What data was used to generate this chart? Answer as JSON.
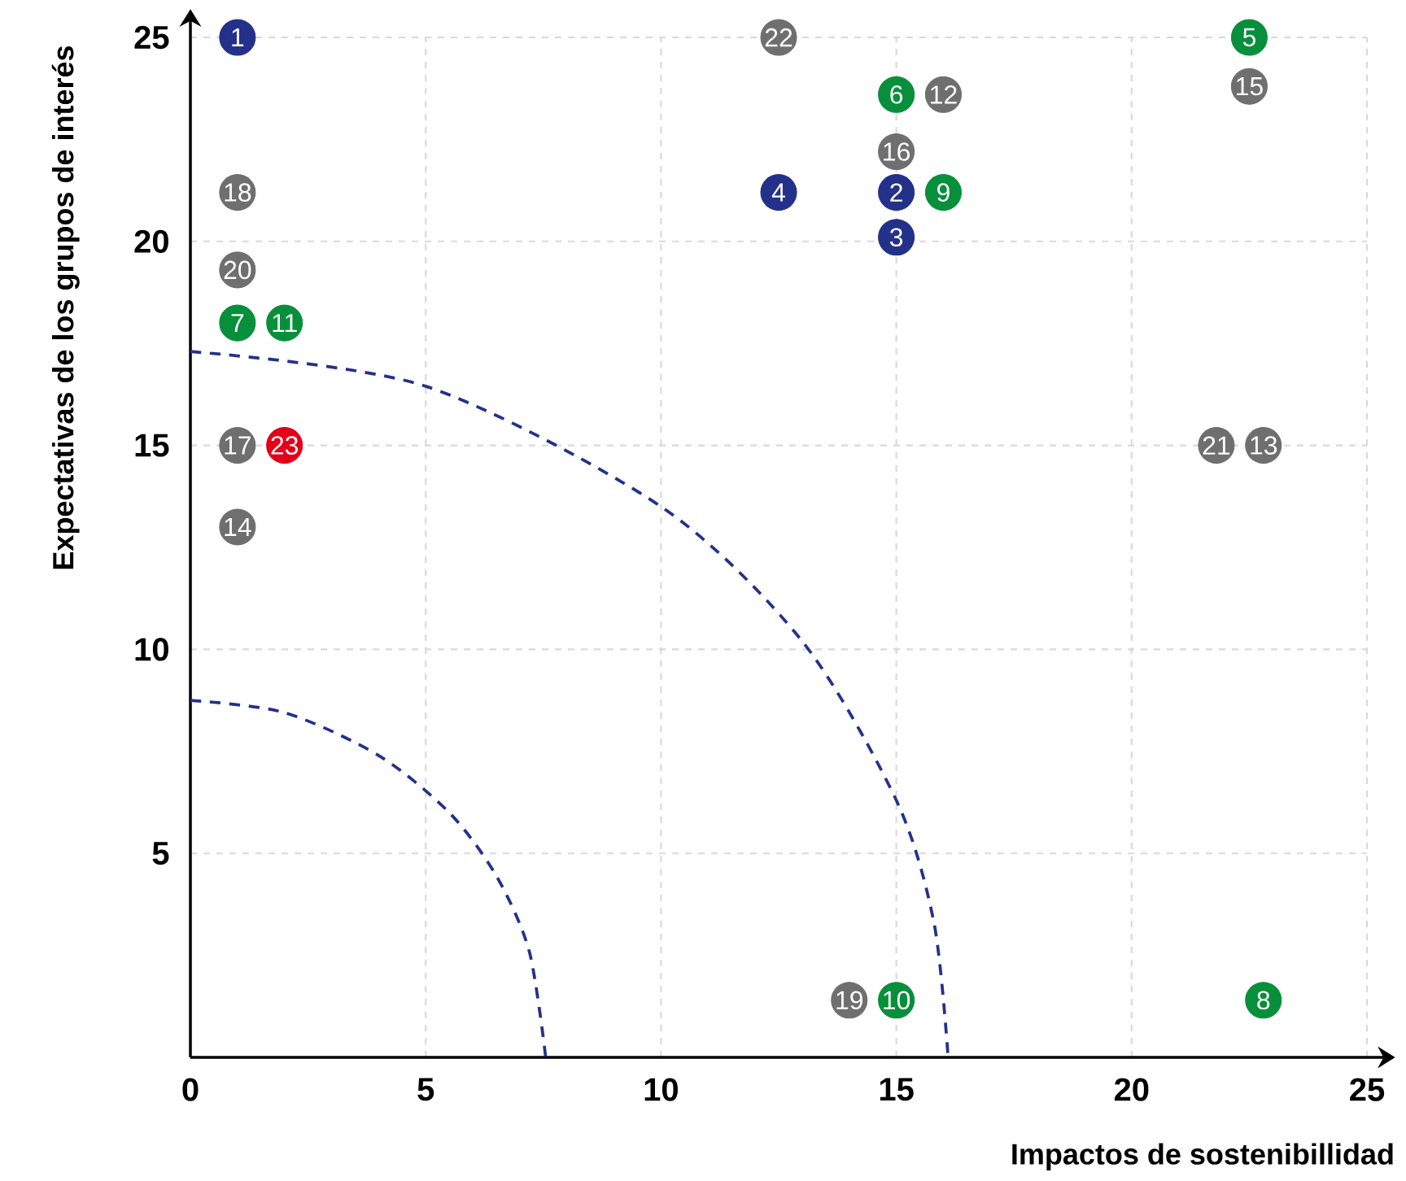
{
  "chart_data": {
    "type": "scatter",
    "xlabel": "Impactos de sostenibillidad",
    "ylabel": "Expectativas de los grupos de interés",
    "xlim": [
      0,
      25
    ],
    "ylim": [
      0,
      25
    ],
    "xticks": [
      0,
      5,
      10,
      15,
      20,
      25
    ],
    "yticks": [
      5,
      10,
      15,
      20,
      25
    ],
    "grid": true,
    "marker": "circle",
    "series": [
      {
        "color": "#24318a",
        "x": [
          1,
          15,
          15,
          12.5
        ],
        "values": [
          25,
          21.2,
          20.1,
          21.2
        ]
      },
      {
        "color": "#078f3b",
        "x": [
          22.5,
          15,
          1,
          22.8,
          16,
          15,
          2
        ],
        "values": [
          25,
          23.6,
          18,
          1.4,
          21.2,
          1.4,
          18
        ]
      },
      {
        "color": "#6f6f6f",
        "x": [
          16,
          22.8,
          1,
          22.5,
          15,
          1,
          1,
          14,
          1,
          21.8,
          12.5
        ],
        "values": [
          23.6,
          15,
          13,
          23.8,
          22.2,
          15,
          21.2,
          1.4,
          19.3,
          15,
          25
        ]
      },
      {
        "color": "#e2001a",
        "x": [
          2
        ],
        "values": [
          15
        ]
      },
      {
        "type": "line",
        "color": "#24318a",
        "line_style": "dashed",
        "marker": "none",
        "x": [
          0,
          2,
          4,
          5.5,
          6.5,
          7.2,
          7.55
        ],
        "values": [
          8.75,
          8.45,
          7.4,
          6.0,
          4.45,
          2.6,
          0
        ]
      },
      {
        "type": "line",
        "color": "#24318a",
        "line_style": "dashed",
        "marker": "none",
        "x": [
          0,
          5,
          10,
          13,
          15,
          15.8,
          16.1
        ],
        "values": [
          17.3,
          16.45,
          13.5,
          10.2,
          6.3,
          3.3,
          0
        ]
      }
    ],
    "annotations": [
      {
        "text": "1",
        "x": 1,
        "y": 25
      },
      {
        "text": "2",
        "x": 15,
        "y": 21.2
      },
      {
        "text": "3",
        "x": 15,
        "y": 20.1
      },
      {
        "text": "4",
        "x": 12.5,
        "y": 21.2
      },
      {
        "text": "5",
        "x": 22.5,
        "y": 25
      },
      {
        "text": "6",
        "x": 15,
        "y": 23.6
      },
      {
        "text": "7",
        "x": 1,
        "y": 18
      },
      {
        "text": "8",
        "x": 22.8,
        "y": 1.4
      },
      {
        "text": "9",
        "x": 16,
        "y": 21.2
      },
      {
        "text": "10",
        "x": 15,
        "y": 1.4
      },
      {
        "text": "11",
        "x": 2,
        "y": 18
      },
      {
        "text": "12",
        "x": 16,
        "y": 23.6
      },
      {
        "text": "13",
        "x": 22.8,
        "y": 15
      },
      {
        "text": "14",
        "x": 1,
        "y": 13
      },
      {
        "text": "15",
        "x": 22.5,
        "y": 23.8
      },
      {
        "text": "16",
        "x": 15,
        "y": 22.2
      },
      {
        "text": "17",
        "x": 1,
        "y": 15
      },
      {
        "text": "18",
        "x": 1,
        "y": 21.2
      },
      {
        "text": "19",
        "x": 14,
        "y": 1.4
      },
      {
        "text": "20",
        "x": 1,
        "y": 19.3
      },
      {
        "text": "21",
        "x": 21.8,
        "y": 15
      },
      {
        "text": "22",
        "x": 12.5,
        "y": 25
      },
      {
        "text": "23",
        "x": 2,
        "y": 15
      }
    ]
  }
}
